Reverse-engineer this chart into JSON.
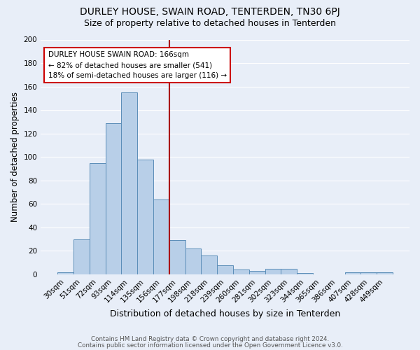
{
  "title": "DURLEY HOUSE, SWAIN ROAD, TENTERDEN, TN30 6PJ",
  "subtitle": "Size of property relative to detached houses in Tenterden",
  "xlabel": "Distribution of detached houses by size in Tenterden",
  "ylabel": "Number of detached properties",
  "categories": [
    "30sqm",
    "51sqm",
    "72sqm",
    "93sqm",
    "114sqm",
    "135sqm",
    "156sqm",
    "177sqm",
    "198sqm",
    "218sqm",
    "239sqm",
    "260sqm",
    "281sqm",
    "302sqm",
    "323sqm",
    "344sqm",
    "365sqm",
    "386sqm",
    "407sqm",
    "428sqm",
    "449sqm"
  ],
  "values": [
    2,
    30,
    95,
    129,
    155,
    98,
    64,
    29,
    22,
    16,
    8,
    4,
    3,
    5,
    5,
    1,
    0,
    0,
    2,
    2,
    2
  ],
  "bar_color": "#b8cfe8",
  "bar_edge_color": "#5b8db8",
  "background_color": "#e8eef8",
  "grid_color": "#ffffff",
  "marker_line_color": "#aa0000",
  "annotation_box_color": "#ffffff",
  "annotation_box_edge": "#cc0000",
  "marker_label": "DURLEY HOUSE SWAIN ROAD: 166sqm",
  "marker_sub1": "← 82% of detached houses are smaller (541)",
  "marker_sub2": "18% of semi-detached houses are larger (116) →",
  "footer1": "Contains HM Land Registry data © Crown copyright and database right 2024.",
  "footer2": "Contains public sector information licensed under the Open Government Licence v3.0.",
  "ylim": [
    0,
    200
  ],
  "yticks": [
    0,
    20,
    40,
    60,
    80,
    100,
    120,
    140,
    160,
    180,
    200
  ],
  "marker_bin_index": 6,
  "title_fontsize": 10,
  "subtitle_fontsize": 9
}
